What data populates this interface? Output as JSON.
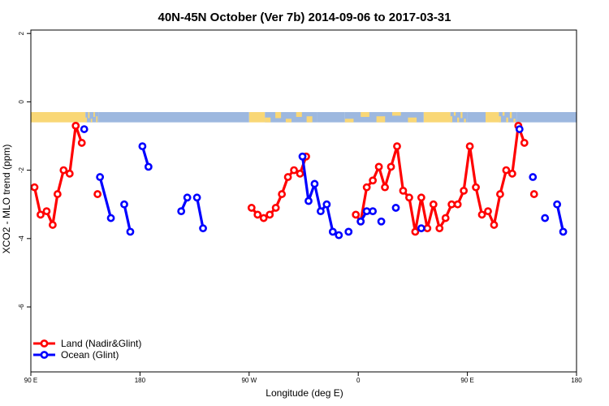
{
  "chart_data": {
    "type": "line",
    "title": "40N-45N October (Ver 7b)   2014-09-06 to 2017-03-31",
    "xlabel": "Longitude (deg E)",
    "ylabel": "XCO2 - MLO trend (ppm)",
    "xlim": [
      90,
      540
    ],
    "ylim": [
      -7.9,
      2.1
    ],
    "x_ticks": [
      {
        "value": 90,
        "label": "90 E"
      },
      {
        "value": 180,
        "label": "180"
      },
      {
        "value": 270,
        "label": "90 W"
      },
      {
        "value": 360,
        "label": "0"
      },
      {
        "value": 450,
        "label": "90 E"
      },
      {
        "value": 540,
        "label": "180"
      }
    ],
    "y_ticks": [
      {
        "value": 2,
        "label": "2"
      },
      {
        "value": 0,
        "label": "0"
      },
      {
        "value": -2,
        "label": "-2"
      },
      {
        "value": -4,
        "label": "-4"
      },
      {
        "value": -6,
        "label": "-6"
      }
    ],
    "grid": false,
    "legend": {
      "position": "bottom-left"
    },
    "land_ocean_strip": {
      "y_range": [
        -0.3,
        -0.6
      ],
      "land_color": "#f9d776",
      "ocean_color": "#9db8df",
      "segments": [
        {
          "x0": 90,
          "x1": 135,
          "surface": "land"
        },
        {
          "x0": 135,
          "x1": 146,
          "surface": "mixed"
        },
        {
          "x0": 146,
          "x1": 270,
          "surface": "ocean"
        },
        {
          "x0": 270,
          "x1": 283,
          "surface": "land"
        },
        {
          "x0": 283,
          "x1": 326,
          "surface": "mixed"
        },
        {
          "x0": 326,
          "x1": 349,
          "surface": "ocean"
        },
        {
          "x0": 349,
          "x1": 414,
          "surface": "mixed"
        },
        {
          "x0": 414,
          "x1": 436,
          "surface": "land"
        },
        {
          "x0": 436,
          "x1": 450,
          "surface": "mixed"
        },
        {
          "x0": 450,
          "x1": 465,
          "surface": "ocean"
        },
        {
          "x0": 465,
          "x1": 476,
          "surface": "land"
        },
        {
          "x0": 476,
          "x1": 491,
          "surface": "mixed"
        },
        {
          "x0": 491,
          "x1": 540,
          "surface": "ocean"
        }
      ]
    },
    "series": [
      {
        "name": "Land (Nadir&Glint)",
        "color": "#ff0000",
        "segments": [
          [
            [
              93,
              -2.5
            ],
            [
              98,
              -3.3
            ],
            [
              103,
              -3.2
            ],
            [
              108,
              -3.6
            ],
            [
              112,
              -2.7
            ],
            [
              117,
              -2.0
            ],
            [
              122,
              -2.1
            ],
            [
              127,
              -0.7
            ],
            [
              132,
              -1.2
            ]
          ],
          [
            [
              145,
              -2.7
            ]
          ],
          [
            [
              272,
              -3.1
            ],
            [
              277,
              -3.3
            ],
            [
              282,
              -3.4
            ],
            [
              287,
              -3.3
            ],
            [
              292,
              -3.1
            ],
            [
              297,
              -2.7
            ],
            [
              302,
              -2.2
            ],
            [
              307,
              -2.0
            ],
            [
              312,
              -2.1
            ],
            [
              317,
              -1.6
            ]
          ],
          [
            [
              358,
              -3.3
            ],
            [
              362,
              -3.5
            ],
            [
              367,
              -2.5
            ],
            [
              372,
              -2.3
            ],
            [
              377,
              -1.9
            ],
            [
              382,
              -2.5
            ],
            [
              387,
              -1.9
            ],
            [
              392,
              -1.3
            ],
            [
              397,
              -2.6
            ],
            [
              402,
              -2.8
            ],
            [
              407,
              -3.8
            ],
            [
              412,
              -2.8
            ],
            [
              417,
              -3.7
            ],
            [
              422,
              -3.0
            ],
            [
              427,
              -3.7
            ],
            [
              432,
              -3.4
            ],
            [
              437,
              -3.0
            ],
            [
              442,
              -3.0
            ],
            [
              447,
              -2.6
            ],
            [
              452,
              -1.3
            ],
            [
              457,
              -2.5
            ],
            [
              462,
              -3.3
            ],
            [
              467,
              -3.2
            ],
            [
              472,
              -3.6
            ],
            [
              477,
              -2.7
            ],
            [
              482,
              -2.0
            ],
            [
              487,
              -2.1
            ],
            [
              492,
              -0.7
            ],
            [
              497,
              -1.2
            ]
          ],
          [
            [
              505,
              -2.7
            ]
          ]
        ]
      },
      {
        "name": "Ocean (Glint)",
        "color": "#0000ff",
        "segments": [
          [
            [
              134,
              -0.8
            ]
          ],
          [
            [
              147,
              -2.2
            ],
            [
              156,
              -3.4
            ]
          ],
          [
            [
              167,
              -3.0
            ],
            [
              172,
              -3.8
            ]
          ],
          [
            [
              182,
              -1.3
            ],
            [
              187,
              -1.9
            ]
          ],
          [
            [
              214,
              -3.2
            ],
            [
              219,
              -2.8
            ]
          ],
          [
            [
              227,
              -2.8
            ],
            [
              232,
              -3.7
            ]
          ],
          [
            [
              314,
              -1.6
            ],
            [
              319,
              -2.9
            ],
            [
              324,
              -2.4
            ],
            [
              329,
              -3.2
            ],
            [
              334,
              -3.0
            ],
            [
              339,
              -3.8
            ],
            [
              344,
              -3.9
            ]
          ],
          [
            [
              352,
              -3.8
            ]
          ],
          [
            [
              362,
              -3.5
            ],
            [
              367,
              -3.2
            ],
            [
              372,
              -3.2
            ]
          ],
          [
            [
              379,
              -3.5
            ]
          ],
          [
            [
              391,
              -3.1
            ]
          ],
          [
            [
              412,
              -3.7
            ]
          ],
          [
            [
              493,
              -0.8
            ]
          ],
          [
            [
              504,
              -2.2
            ]
          ],
          [
            [
              514,
              -3.4
            ]
          ],
          [
            [
              524,
              -3.0
            ],
            [
              529,
              -3.8
            ]
          ]
        ]
      }
    ]
  }
}
